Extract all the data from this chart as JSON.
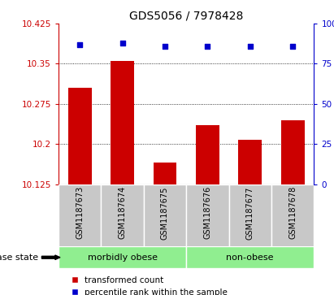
{
  "title": "GDS5056 / 7978428",
  "categories": [
    "GSM1187673",
    "GSM1187674",
    "GSM1187675",
    "GSM1187676",
    "GSM1187677",
    "GSM1187678"
  ],
  "bar_values": [
    10.305,
    10.356,
    10.166,
    10.236,
    10.208,
    10.245
  ],
  "percentile_values": [
    87,
    88,
    86,
    86,
    86,
    86
  ],
  "ylim_left": [
    10.125,
    10.425
  ],
  "ylim_right": [
    0,
    100
  ],
  "yticks_left": [
    10.125,
    10.2,
    10.275,
    10.35,
    10.425
  ],
  "yticks_right": [
    0,
    25,
    50,
    75,
    100
  ],
  "bar_color": "#cc0000",
  "scatter_color": "#0000cc",
  "group1_label": "morbidly obese",
  "group2_label": "non-obese",
  "group_bg_color": "#90ee90",
  "tick_label_bg": "#c8c8c8",
  "legend_bar_label": "transformed count",
  "legend_scatter_label": "percentile rank within the sample",
  "disease_state_label": "disease state",
  "title_fontsize": 10,
  "tick_fontsize": 7.5,
  "cat_fontsize": 7,
  "group_fontsize": 8,
  "legend_fontsize": 7.5
}
